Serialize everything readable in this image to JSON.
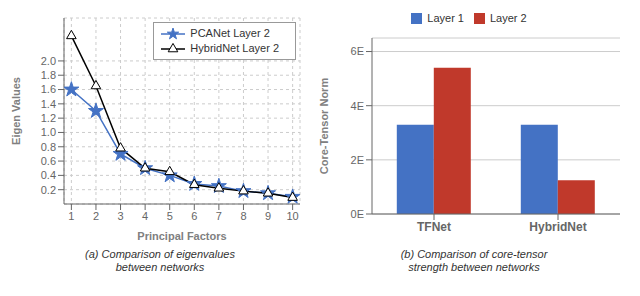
{
  "chart_data": [
    {
      "type": "line",
      "title": "(a) Comparison of eigenvalues\nbetween networks",
      "xlabel": "Principal Factors",
      "ylabel": "Eigen Values",
      "x": [
        1,
        2,
        3,
        4,
        5,
        6,
        7,
        8,
        9,
        10
      ],
      "series": [
        {
          "name": "PCANet Layer 2",
          "color": "#4472C4",
          "marker": "star",
          "values": [
            1.6,
            1.3,
            0.7,
            0.5,
            0.4,
            0.28,
            0.25,
            0.18,
            0.15,
            0.1
          ]
        },
        {
          "name": "HybridNet Layer 2",
          "color": "#000000",
          "marker": "triangle",
          "values": [
            2.35,
            1.65,
            0.78,
            0.5,
            0.45,
            0.27,
            0.22,
            0.18,
            0.15,
            0.09
          ]
        }
      ],
      "xlim": [
        0.7,
        10.3
      ],
      "xticks": [
        1,
        2,
        3,
        4,
        5,
        6,
        7,
        8,
        9,
        10
      ],
      "ylim": [
        0,
        2.6
      ],
      "yticks": [
        0.2,
        0.4,
        0.6,
        0.8,
        {
          "value": 1.0,
          "label": "1.0"
        },
        1.2,
        1.4,
        1.6,
        1.8,
        {
          "value": 2.0,
          "label": "2.0"
        }
      ],
      "grid": true,
      "legend": "upper right"
    },
    {
      "type": "bar",
      "title": "(b) Comparison of core-tensor\nstrength between networks",
      "ylabel": "Core-Tensor Norm",
      "categories": [
        "TFNet",
        "HybridNet"
      ],
      "series": [
        {
          "name": "Layer 1",
          "color": "#4472C4",
          "values": [
            3.3,
            3.3
          ]
        },
        {
          "name": "Layer 2",
          "color": "#C0392B",
          "values": [
            5.4,
            1.25
          ]
        }
      ],
      "ylim": [
        0,
        6.5
      ],
      "yticks": [
        {
          "value": 0,
          "label": "0E"
        },
        {
          "value": 2,
          "label": "2E"
        },
        {
          "value": 4,
          "label": "4E"
        },
        {
          "value": 6,
          "label": "6E"
        }
      ],
      "grid": true,
      "legend": "top"
    }
  ]
}
